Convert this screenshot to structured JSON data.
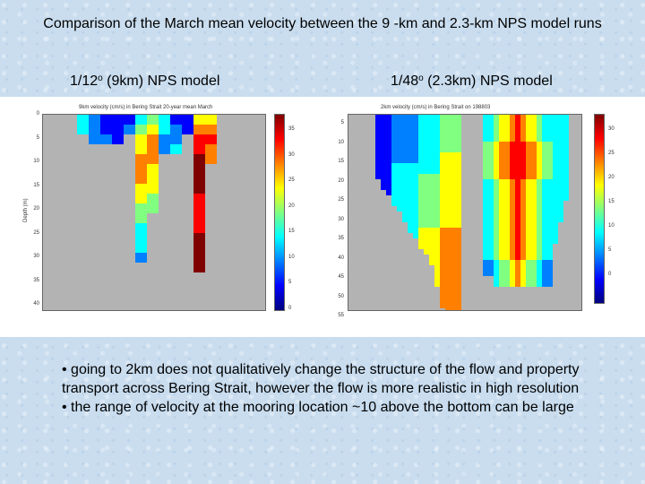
{
  "slide": {
    "title": "Comparison of the March mean velocity between the 9 -km and 2.3-km NPS model runs",
    "left_heading": {
      "prefix": "1/12",
      "sup": "o",
      "suffix": " (9km) NPS model"
    },
    "right_heading": {
      "prefix": "1/48",
      "sup": "o",
      "suffix": " (2.3km) NPS model"
    },
    "bullets": [
      "• going to 2km does not qualitatively change the structure of the flow and property transport across Bering Strait, however the flow is more realistic in high resolution",
      "• the range of velocity at the mooring location ~10 above the bottom can be large"
    ]
  },
  "figures": {
    "left": {
      "title": "9km velocity (cm/s) in Bering Strait 20-year mean March",
      "ylabel": "Depth (m)",
      "yticks": [
        "0",
        "5",
        "10",
        "15",
        "20",
        "25",
        "30",
        "35",
        "40"
      ],
      "cbar_ticks": [
        "35",
        "30",
        "25",
        "20",
        "15",
        "10",
        "5",
        "0"
      ]
    },
    "right": {
      "title": "2km velocity (cm/s) in Bering Strait on 198803",
      "yticks": [
        "5",
        "10",
        "15",
        "20",
        "25",
        "30",
        "35",
        "40",
        "45",
        "50",
        "55"
      ],
      "cbar_ticks": [
        "30",
        "25",
        "20",
        "15",
        "10",
        "5",
        "0"
      ]
    }
  },
  "colors": {
    "land": "#b3b3b3",
    "palette": [
      "#00007f",
      "#0000ff",
      "#0080ff",
      "#00ffff",
      "#80ff80",
      "#ffff00",
      "#ff8000",
      "#ff0000",
      "#7f0000"
    ]
  }
}
